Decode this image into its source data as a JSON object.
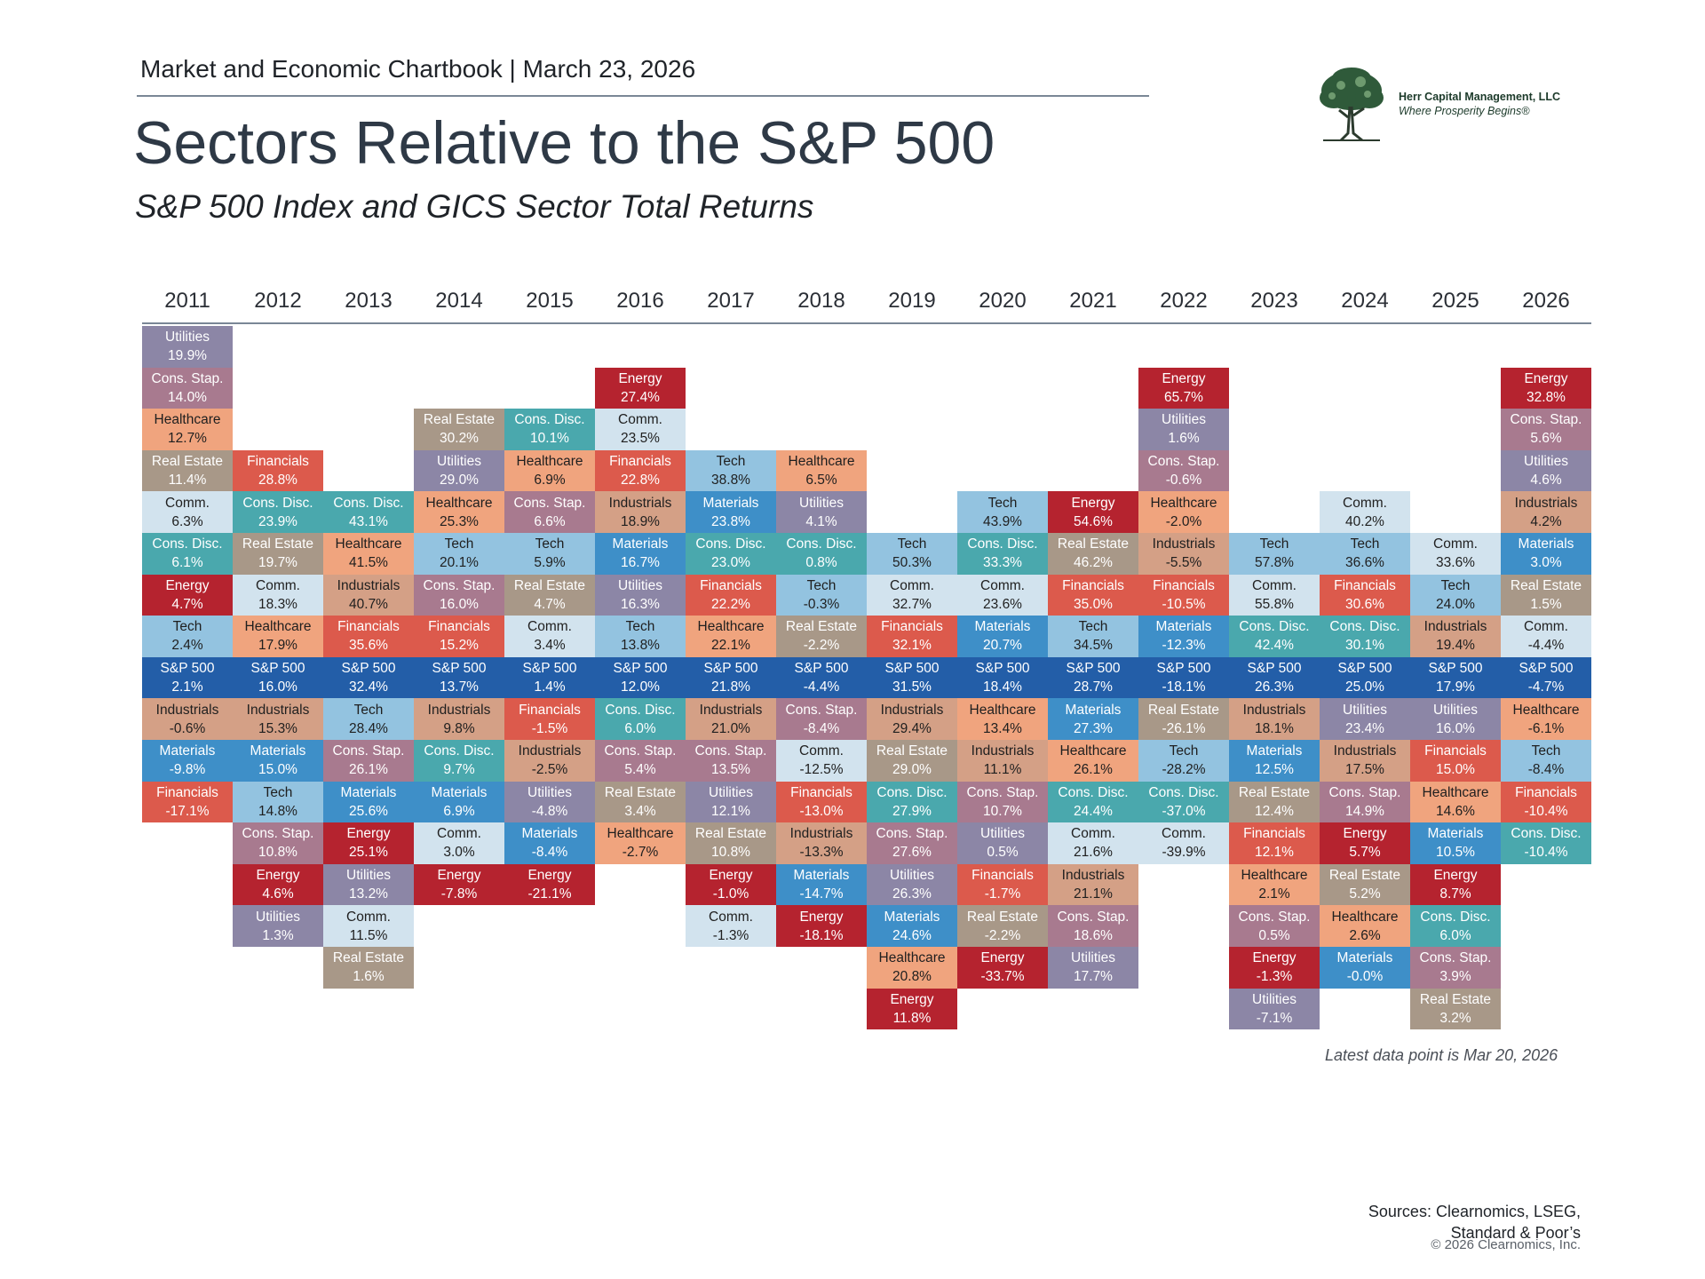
{
  "header": {
    "chartbook": "Market and Economic Chartbook | March 23, 2026",
    "title": "Sectors Relative to the S&P 500",
    "subtitle": "S&P 500 Index and GICS Sector Total Returns"
  },
  "logo": {
    "name": "Herr Capital Management, LLC",
    "tagline": "Where Prosperity Begins®"
  },
  "colors": {
    "Utilities": "#8c86a6",
    "Cons. Stap.": "#a87a8f",
    "Healthcare": "#f0a47e",
    "Real Estate": "#a89888",
    "Comm.": "#d2e3ee",
    "Cons. Disc.": "#4aa8ad",
    "Energy": "#b5232f",
    "Tech": "#93c3e0",
    "S&P 500": "#235ea8",
    "Industrials": "#d4a086",
    "Materials": "#3e8fc8",
    "Financials": "#dc5a4c"
  },
  "text_colors": {
    "Utilities": "#ffffff",
    "Cons. Stap.": "#ffffff",
    "Healthcare": "#1f1f1f",
    "Real Estate": "#ffffff",
    "Comm.": "#1f1f1f",
    "Cons. Disc.": "#ffffff",
    "Energy": "#ffffff",
    "Tech": "#1f1f1f",
    "S&P 500": "#ffffff",
    "Industrials": "#1f1f1f",
    "Materials": "#ffffff",
    "Financials": "#ffffff"
  },
  "chart_data": {
    "type": "table",
    "categories": [
      "2011",
      "2012",
      "2013",
      "2014",
      "2015",
      "2016",
      "2017",
      "2018",
      "2019",
      "2020",
      "2021",
      "2022",
      "2023",
      "2024",
      "2025",
      "2026"
    ],
    "columns": [
      {
        "year": "2011",
        "sp_rank": 8,
        "cells": [
          [
            "Utilities",
            "19.9%"
          ],
          [
            "Cons. Stap.",
            "14.0%"
          ],
          [
            "Healthcare",
            "12.7%"
          ],
          [
            "Real Estate",
            "11.4%"
          ],
          [
            "Comm.",
            "6.3%"
          ],
          [
            "Cons. Disc.",
            "6.1%"
          ],
          [
            "Energy",
            "4.7%"
          ],
          [
            "Tech",
            "2.4%"
          ],
          [
            "S&P 500",
            "2.1%"
          ],
          [
            "Industrials",
            "-0.6%"
          ],
          [
            "Materials",
            "-9.8%"
          ],
          [
            "Financials",
            "-17.1%"
          ]
        ]
      },
      {
        "year": "2012",
        "sp_rank": 5,
        "cells": [
          [
            "Financials",
            "28.8%"
          ],
          [
            "Cons. Disc.",
            "23.9%"
          ],
          [
            "Real Estate",
            "19.7%"
          ],
          [
            "Comm.",
            "18.3%"
          ],
          [
            "Healthcare",
            "17.9%"
          ],
          [
            "S&P 500",
            "16.0%"
          ],
          [
            "Industrials",
            "15.3%"
          ],
          [
            "Materials",
            "15.0%"
          ],
          [
            "Tech",
            "14.8%"
          ],
          [
            "Cons. Stap.",
            "10.8%"
          ],
          [
            "Energy",
            "4.6%"
          ],
          [
            "Utilities",
            "1.3%"
          ]
        ]
      },
      {
        "year": "2013",
        "sp_rank": 4,
        "cells": [
          [
            "Cons. Disc.",
            "43.1%"
          ],
          [
            "Healthcare",
            "41.5%"
          ],
          [
            "Industrials",
            "40.7%"
          ],
          [
            "Financials",
            "35.6%"
          ],
          [
            "S&P 500",
            "32.4%"
          ],
          [
            "Tech",
            "28.4%"
          ],
          [
            "Cons. Stap.",
            "26.1%"
          ],
          [
            "Materials",
            "25.6%"
          ],
          [
            "Energy",
            "25.1%"
          ],
          [
            "Utilities",
            "13.2%"
          ],
          [
            "Comm.",
            "11.5%"
          ],
          [
            "Real Estate",
            "1.6%"
          ]
        ]
      },
      {
        "year": "2014",
        "sp_rank": 6,
        "cells": [
          [
            "Real Estate",
            "30.2%"
          ],
          [
            "Utilities",
            "29.0%"
          ],
          [
            "Healthcare",
            "25.3%"
          ],
          [
            "Tech",
            "20.1%"
          ],
          [
            "Cons. Stap.",
            "16.0%"
          ],
          [
            "Financials",
            "15.2%"
          ],
          [
            "S&P 500",
            "13.7%"
          ],
          [
            "Industrials",
            "9.8%"
          ],
          [
            "Cons. Disc.",
            "9.7%"
          ],
          [
            "Materials",
            "6.9%"
          ],
          [
            "Comm.",
            "3.0%"
          ],
          [
            "Energy",
            "-7.8%"
          ]
        ]
      },
      {
        "year": "2015",
        "sp_rank": 6,
        "cells": [
          [
            "Cons. Disc.",
            "10.1%"
          ],
          [
            "Healthcare",
            "6.9%"
          ],
          [
            "Cons. Stap.",
            "6.6%"
          ],
          [
            "Tech",
            "5.9%"
          ],
          [
            "Real Estate",
            "4.7%"
          ],
          [
            "Comm.",
            "3.4%"
          ],
          [
            "S&P 500",
            "1.4%"
          ],
          [
            "Financials",
            "-1.5%"
          ],
          [
            "Industrials",
            "-2.5%"
          ],
          [
            "Utilities",
            "-4.8%"
          ],
          [
            "Materials",
            "-8.4%"
          ],
          [
            "Energy",
            "-21.1%"
          ]
        ]
      },
      {
        "year": "2016",
        "sp_rank": 7,
        "cells": [
          [
            "Energy",
            "27.4%"
          ],
          [
            "Comm.",
            "23.5%"
          ],
          [
            "Financials",
            "22.8%"
          ],
          [
            "Industrials",
            "18.9%"
          ],
          [
            "Materials",
            "16.7%"
          ],
          [
            "Utilities",
            "16.3%"
          ],
          [
            "Tech",
            "13.8%"
          ],
          [
            "S&P 500",
            "12.0%"
          ],
          [
            "Cons. Disc.",
            "6.0%"
          ],
          [
            "Cons. Stap.",
            "5.4%"
          ],
          [
            "Real Estate",
            "3.4%"
          ],
          [
            "Healthcare",
            "-2.7%"
          ]
        ]
      },
      {
        "year": "2017",
        "sp_rank": 5,
        "cells": [
          [
            "Tech",
            "38.8%"
          ],
          [
            "Materials",
            "23.8%"
          ],
          [
            "Cons. Disc.",
            "23.0%"
          ],
          [
            "Financials",
            "22.2%"
          ],
          [
            "Healthcare",
            "22.1%"
          ],
          [
            "S&P 500",
            "21.8%"
          ],
          [
            "Industrials",
            "21.0%"
          ],
          [
            "Cons. Stap.",
            "13.5%"
          ],
          [
            "Utilities",
            "12.1%"
          ],
          [
            "Real Estate",
            "10.8%"
          ],
          [
            "Energy",
            "-1.0%"
          ],
          [
            "Comm.",
            "-1.3%"
          ]
        ]
      },
      {
        "year": "2018",
        "sp_rank": 5,
        "cells": [
          [
            "Healthcare",
            "6.5%"
          ],
          [
            "Utilities",
            "4.1%"
          ],
          [
            "Cons. Disc.",
            "0.8%"
          ],
          [
            "Tech",
            "-0.3%"
          ],
          [
            "Real Estate",
            "-2.2%"
          ],
          [
            "S&P 500",
            "-4.4%"
          ],
          [
            "Cons. Stap.",
            "-8.4%"
          ],
          [
            "Comm.",
            "-12.5%"
          ],
          [
            "Financials",
            "-13.0%"
          ],
          [
            "Industrials",
            "-13.3%"
          ],
          [
            "Materials",
            "-14.7%"
          ],
          [
            "Energy",
            "-18.1%"
          ]
        ]
      },
      {
        "year": "2019",
        "sp_rank": 3,
        "cells": [
          [
            "Tech",
            "50.3%"
          ],
          [
            "Comm.",
            "32.7%"
          ],
          [
            "Financials",
            "32.1%"
          ],
          [
            "S&P 500",
            "31.5%"
          ],
          [
            "Industrials",
            "29.4%"
          ],
          [
            "Real Estate",
            "29.0%"
          ],
          [
            "Cons. Disc.",
            "27.9%"
          ],
          [
            "Cons. Stap.",
            "27.6%"
          ],
          [
            "Utilities",
            "26.3%"
          ],
          [
            "Materials",
            "24.6%"
          ],
          [
            "Healthcare",
            "20.8%"
          ],
          [
            "Energy",
            "11.8%"
          ]
        ]
      },
      {
        "year": "2020",
        "sp_rank": 4,
        "cells": [
          [
            "Tech",
            "43.9%"
          ],
          [
            "Cons. Disc.",
            "33.3%"
          ],
          [
            "Comm.",
            "23.6%"
          ],
          [
            "Materials",
            "20.7%"
          ],
          [
            "S&P 500",
            "18.4%"
          ],
          [
            "Healthcare",
            "13.4%"
          ],
          [
            "Industrials",
            "11.1%"
          ],
          [
            "Cons. Stap.",
            "10.7%"
          ],
          [
            "Utilities",
            "0.5%"
          ],
          [
            "Financials",
            "-1.7%"
          ],
          [
            "Real Estate",
            "-2.2%"
          ],
          [
            "Energy",
            "-33.7%"
          ]
        ]
      },
      {
        "year": "2021",
        "sp_rank": 4,
        "cells": [
          [
            "Energy",
            "54.6%"
          ],
          [
            "Real Estate",
            "46.2%"
          ],
          [
            "Financials",
            "35.0%"
          ],
          [
            "Tech",
            "34.5%"
          ],
          [
            "S&P 500",
            "28.7%"
          ],
          [
            "Materials",
            "27.3%"
          ],
          [
            "Healthcare",
            "26.1%"
          ],
          [
            "Cons. Disc.",
            "24.4%"
          ],
          [
            "Comm.",
            "21.6%"
          ],
          [
            "Industrials",
            "21.1%"
          ],
          [
            "Cons. Stap.",
            "18.6%"
          ],
          [
            "Utilities",
            "17.7%"
          ]
        ]
      },
      {
        "year": "2022",
        "sp_rank": 7,
        "cells": [
          [
            "Energy",
            "65.7%"
          ],
          [
            "Utilities",
            "1.6%"
          ],
          [
            "Cons. Stap.",
            "-0.6%"
          ],
          [
            "Healthcare",
            "-2.0%"
          ],
          [
            "Industrials",
            "-5.5%"
          ],
          [
            "Financials",
            "-10.5%"
          ],
          [
            "Materials",
            "-12.3%"
          ],
          [
            "S&P 500",
            "-18.1%"
          ],
          [
            "Real Estate",
            "-26.1%"
          ],
          [
            "Tech",
            "-28.2%"
          ],
          [
            "Cons. Disc.",
            "-37.0%"
          ],
          [
            "Comm.",
            "-39.9%"
          ]
        ]
      },
      {
        "year": "2023",
        "sp_rank": 3,
        "cells": [
          [
            "Tech",
            "57.8%"
          ],
          [
            "Comm.",
            "55.8%"
          ],
          [
            "Cons. Disc.",
            "42.4%"
          ],
          [
            "S&P 500",
            "26.3%"
          ],
          [
            "Industrials",
            "18.1%"
          ],
          [
            "Materials",
            "12.5%"
          ],
          [
            "Real Estate",
            "12.4%"
          ],
          [
            "Financials",
            "12.1%"
          ],
          [
            "Healthcare",
            "2.1%"
          ],
          [
            "Cons. Stap.",
            "0.5%"
          ],
          [
            "Energy",
            "-1.3%"
          ],
          [
            "Utilities",
            "-7.1%"
          ]
        ]
      },
      {
        "year": "2024",
        "sp_rank": 4,
        "cells": [
          [
            "Comm.",
            "40.2%"
          ],
          [
            "Tech",
            "36.6%"
          ],
          [
            "Financials",
            "30.6%"
          ],
          [
            "Cons. Disc.",
            "30.1%"
          ],
          [
            "S&P 500",
            "25.0%"
          ],
          [
            "Utilities",
            "23.4%"
          ],
          [
            "Industrials",
            "17.5%"
          ],
          [
            "Cons. Stap.",
            "14.9%"
          ],
          [
            "Energy",
            "5.7%"
          ],
          [
            "Real Estate",
            "5.2%"
          ],
          [
            "Healthcare",
            "2.6%"
          ],
          [
            "Materials",
            "-0.0%"
          ]
        ]
      },
      {
        "year": "2025",
        "sp_rank": 3,
        "cells": [
          [
            "Comm.",
            "33.6%"
          ],
          [
            "Tech",
            "24.0%"
          ],
          [
            "Industrials",
            "19.4%"
          ],
          [
            "S&P 500",
            "17.9%"
          ],
          [
            "Utilities",
            "16.0%"
          ],
          [
            "Financials",
            "15.0%"
          ],
          [
            "Healthcare",
            "14.6%"
          ],
          [
            "Materials",
            "10.5%"
          ],
          [
            "Energy",
            "8.7%"
          ],
          [
            "Cons. Disc.",
            "6.0%"
          ],
          [
            "Cons. Stap.",
            "3.9%"
          ],
          [
            "Real Estate",
            "3.2%"
          ]
        ]
      },
      {
        "year": "2026",
        "sp_rank": 7,
        "cells": [
          [
            "Energy",
            "32.8%"
          ],
          [
            "Cons. Stap.",
            "5.6%"
          ],
          [
            "Utilities",
            "4.6%"
          ],
          [
            "Industrials",
            "4.2%"
          ],
          [
            "Materials",
            "3.0%"
          ],
          [
            "Real Estate",
            "1.5%"
          ],
          [
            "Comm.",
            "-4.4%"
          ],
          [
            "S&P 500",
            "-4.7%"
          ],
          [
            "Healthcare",
            "-6.1%"
          ],
          [
            "Tech",
            "-8.4%"
          ],
          [
            "Financials",
            "-10.4%"
          ],
          [
            "Cons. Disc.",
            "-10.4%"
          ]
        ]
      }
    ]
  },
  "footer": {
    "note": "Latest data point is Mar 20, 2026",
    "sources_line1": "Sources: Clearnomics, LSEG,",
    "sources_line2": "Standard & Poor’s",
    "copyright": "© 2026 Clearnomics, Inc."
  }
}
